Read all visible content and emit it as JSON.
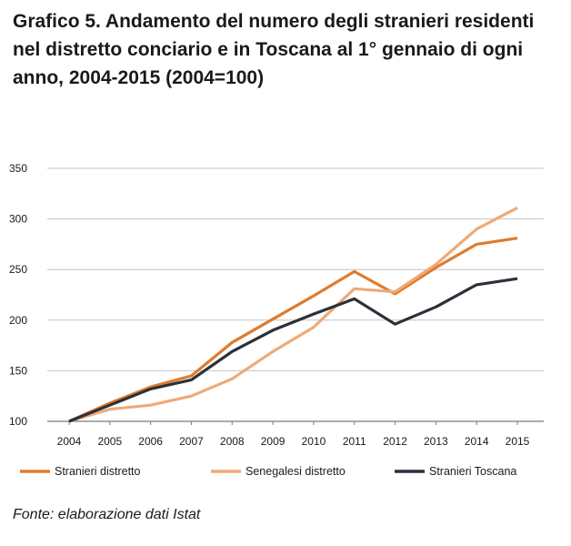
{
  "chart_data": {
    "type": "line",
    "title": "Grafico 5. Andamento del numero degli stranieri residenti nel distretto conciario e in Toscana al 1° gennaio di ogni anno, 2004-2015 (2004=100)",
    "xlabel": "",
    "ylabel": "",
    "x": [
      "2004",
      "2005",
      "2006",
      "2007",
      "2008",
      "2009",
      "2010",
      "2011",
      "2012",
      "2013",
      "2014",
      "2015"
    ],
    "ylim": [
      100,
      350
    ],
    "yticks": [
      100,
      150,
      200,
      250,
      300,
      350
    ],
    "grid": true,
    "legend_position": "bottom",
    "series": [
      {
        "name": "Stranieri distretto",
        "color": "#e07b2e",
        "values": [
          100,
          118,
          134,
          145,
          178,
          201,
          224,
          248,
          226,
          252,
          275,
          281
        ]
      },
      {
        "name": "Senegalesi distretto",
        "color": "#eeaa78",
        "values": [
          100,
          112,
          116,
          125,
          142,
          169,
          193,
          231,
          228,
          255,
          290,
          311
        ]
      },
      {
        "name": "Stranieri Toscana",
        "color": "#2b313a",
        "values": [
          100,
          116,
          132,
          141,
          169,
          190,
          206,
          221,
          196,
          213,
          235,
          241
        ]
      }
    ]
  },
  "source": "Fonte: elaborazione dati Istat",
  "colors": {
    "axis": "#7a7a7a",
    "grid": "#c4c4c4",
    "text": "#1a1a1a"
  }
}
